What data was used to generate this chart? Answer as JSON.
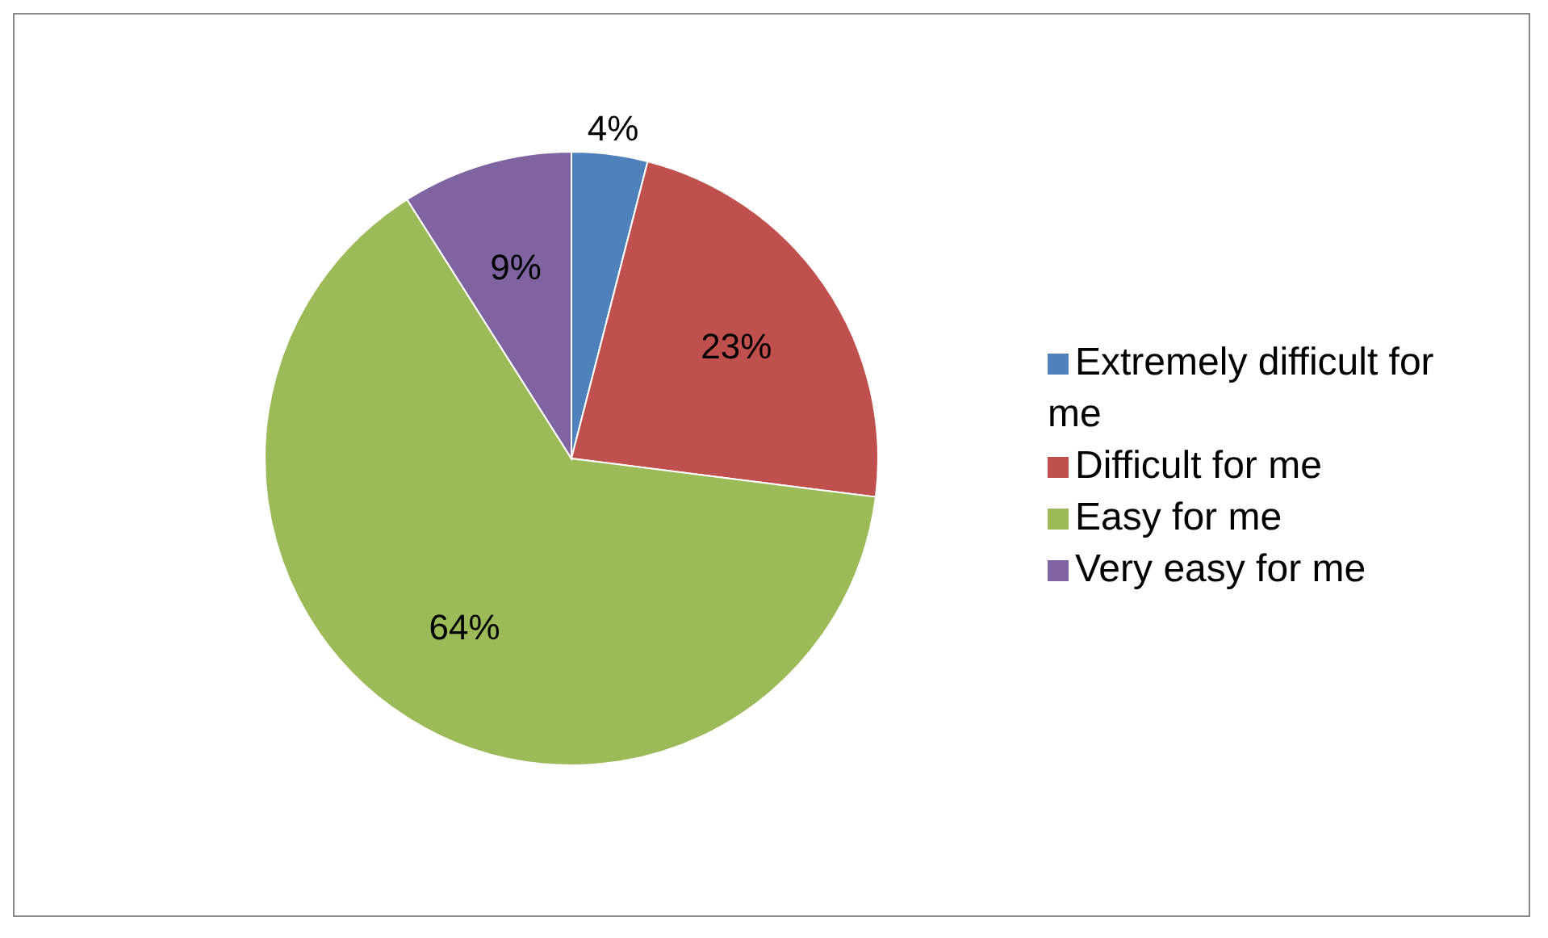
{
  "chart_data": {
    "type": "pie",
    "categories": [
      "Extremely difficult for me",
      "Difficult for me",
      "Easy for me",
      "Very easy for me"
    ],
    "values": [
      4,
      23,
      64,
      9
    ],
    "colors": [
      "#4f81bd",
      "#c0504d",
      "#9bbb59",
      "#8064a2"
    ],
    "value_labels": [
      "4%",
      "23%",
      "64%",
      "9%"
    ],
    "legend": "right"
  }
}
